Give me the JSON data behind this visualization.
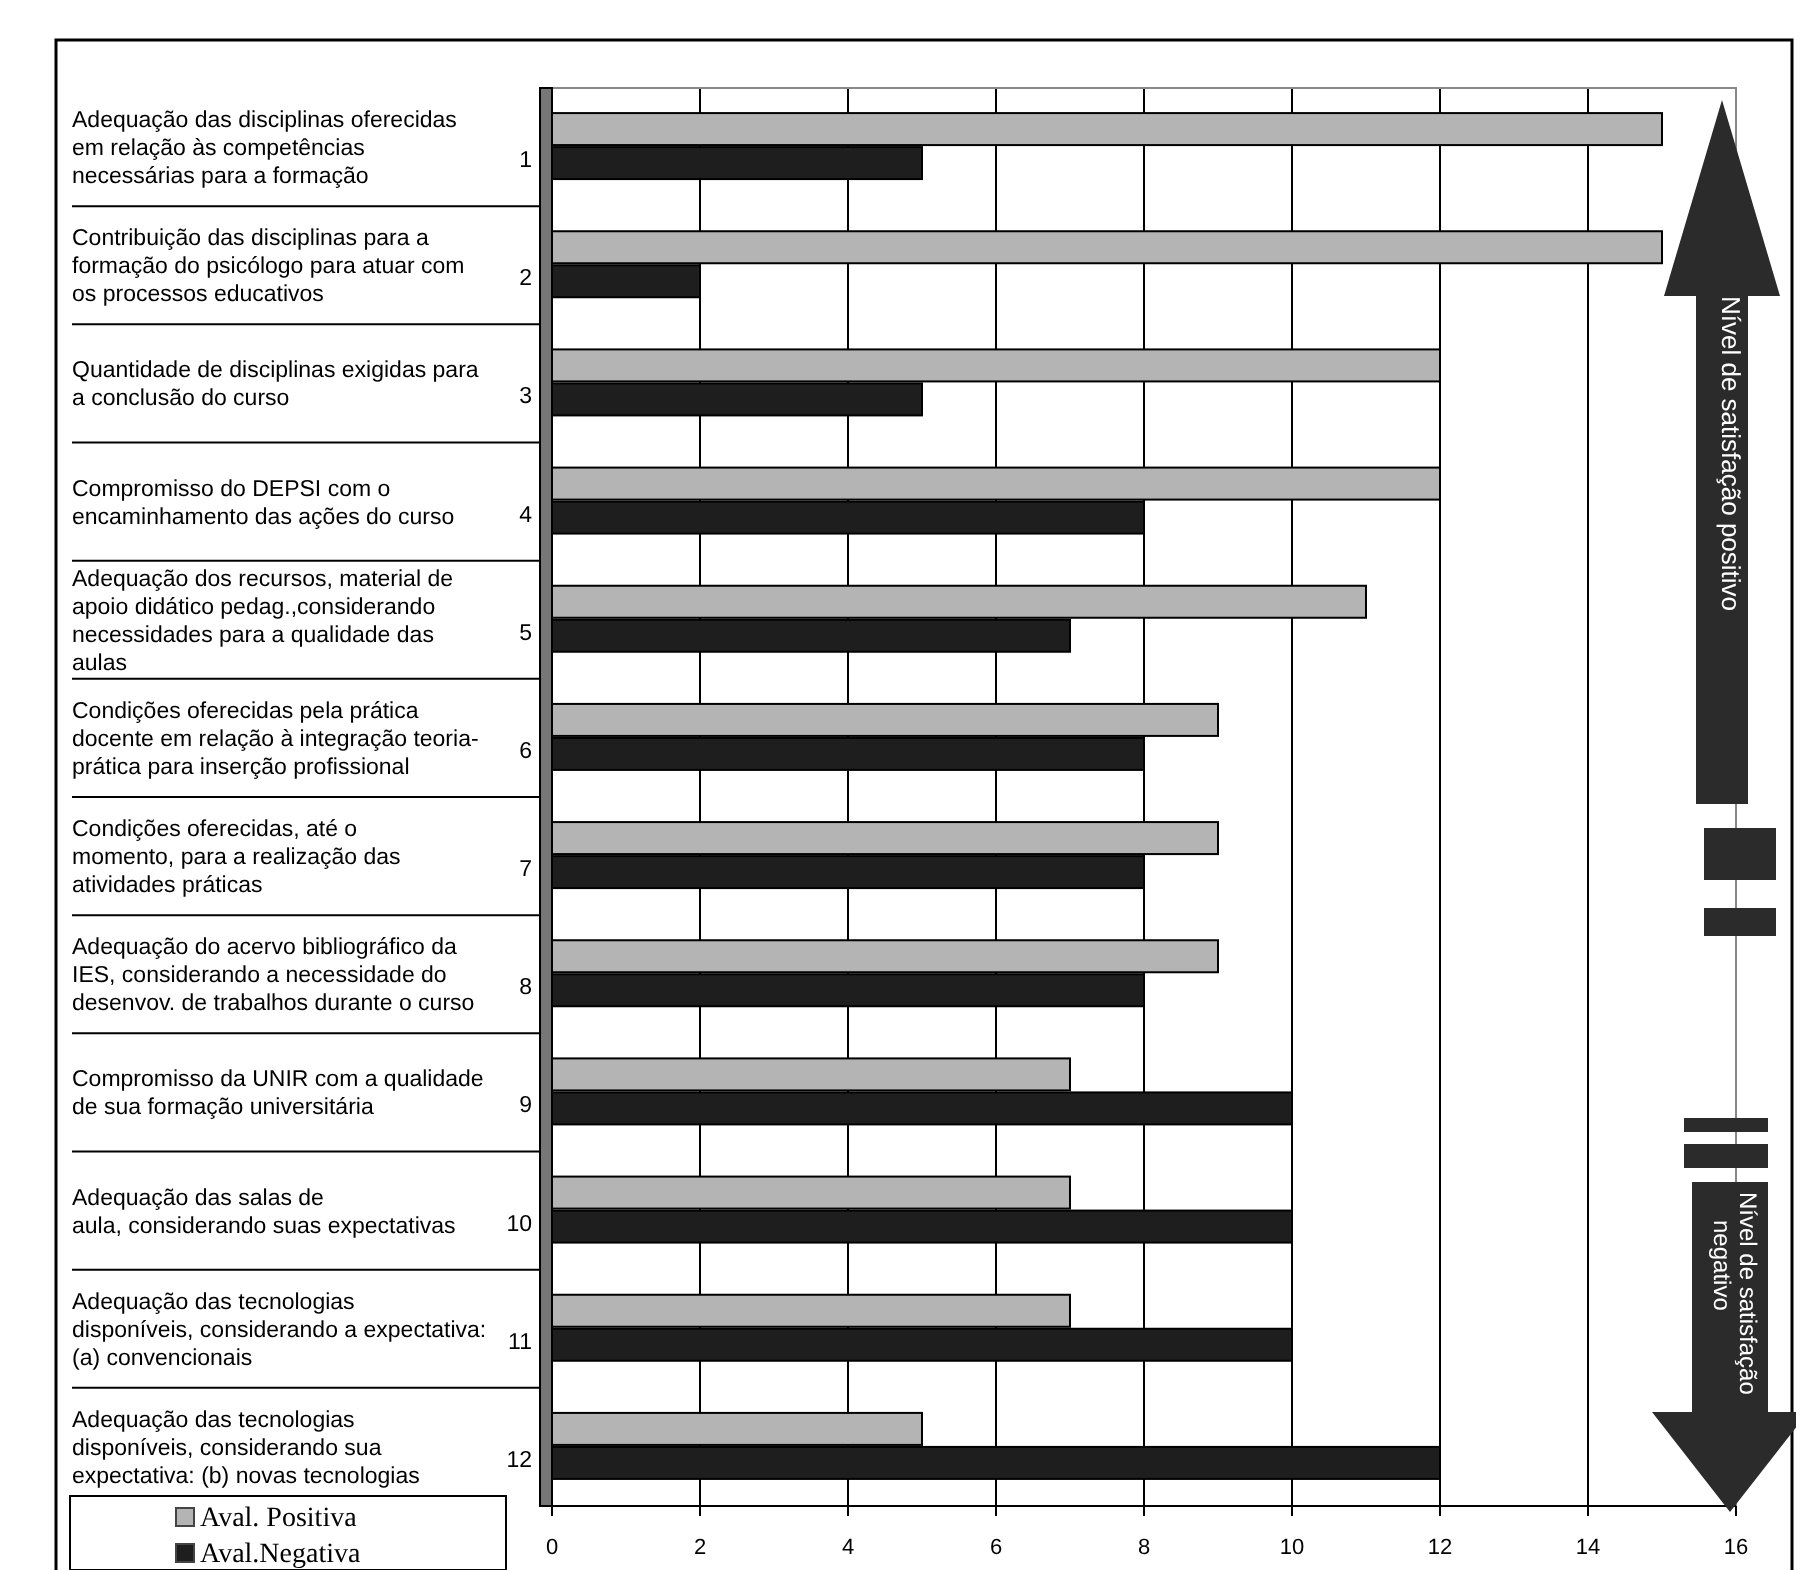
{
  "chart_data": {
    "type": "bar",
    "orientation": "horizontal",
    "categories": [
      "Adequação das disciplinas oferecidas\nem relação  às competências\nnecessárias para a formação\n1",
      "Contribuição das disciplinas para a\nformação do psicólogo para atuar com\nos processos educativos\n2",
      "Quantidade de disciplinas exigidas para\na conclusão do curso\n3",
      "Compromisso do DEPSI com o\nencaminhamento  das ações do curso\n4",
      "Adequação dos recursos, material de\napoio didático pedag.,considerando\nnecessidades para a qualidade das\naulas\n5",
      "Condições oferecidas pela prática\ndocente em relação à integração teoria-\nprática para inserção profissional\n6",
      "Condições oferecidas, até o\nmomento, para a realização  das\natividades práticas\n7",
      "Adequação do acervo bibliográfico da\nIES, considerando a necessidade do\ndesenvov. de trabalhos durante o curso\n8",
      "Compromisso da UNIR com a qualidade\nde sua formação universitária\n9",
      "Adequação das salas de\naula, considerando suas expectativas\n10",
      "Adequação das tecnologias\ndisponíveis, considerando a expectativa:\n(a) convencionais\n11",
      "Adequação das tecnologias\ndisponíveis, considerando sua\nexpectativa: (b) novas tecnologias\n12"
    ],
    "series": [
      {
        "name": "Aval. Positiva",
        "color": "#b4b4b4",
        "values": [
          15,
          15,
          12,
          12,
          11,
          9,
          9,
          9,
          7,
          7,
          7,
          5
        ]
      },
      {
        "name": "Aval.Negativa",
        "color": "#1e1e1e",
        "values": [
          5,
          2,
          5,
          8,
          7,
          8,
          8,
          8,
          10,
          10,
          10,
          12
        ]
      }
    ],
    "xlim": [
      0,
      16
    ],
    "xticks": [
      0,
      2,
      4,
      6,
      8,
      10,
      12,
      14,
      16
    ],
    "grid": "x",
    "legend": "bottom left",
    "annotations": [
      "Nível de satisfação positivo",
      "Nível de satisfação\nnegativo"
    ]
  }
}
